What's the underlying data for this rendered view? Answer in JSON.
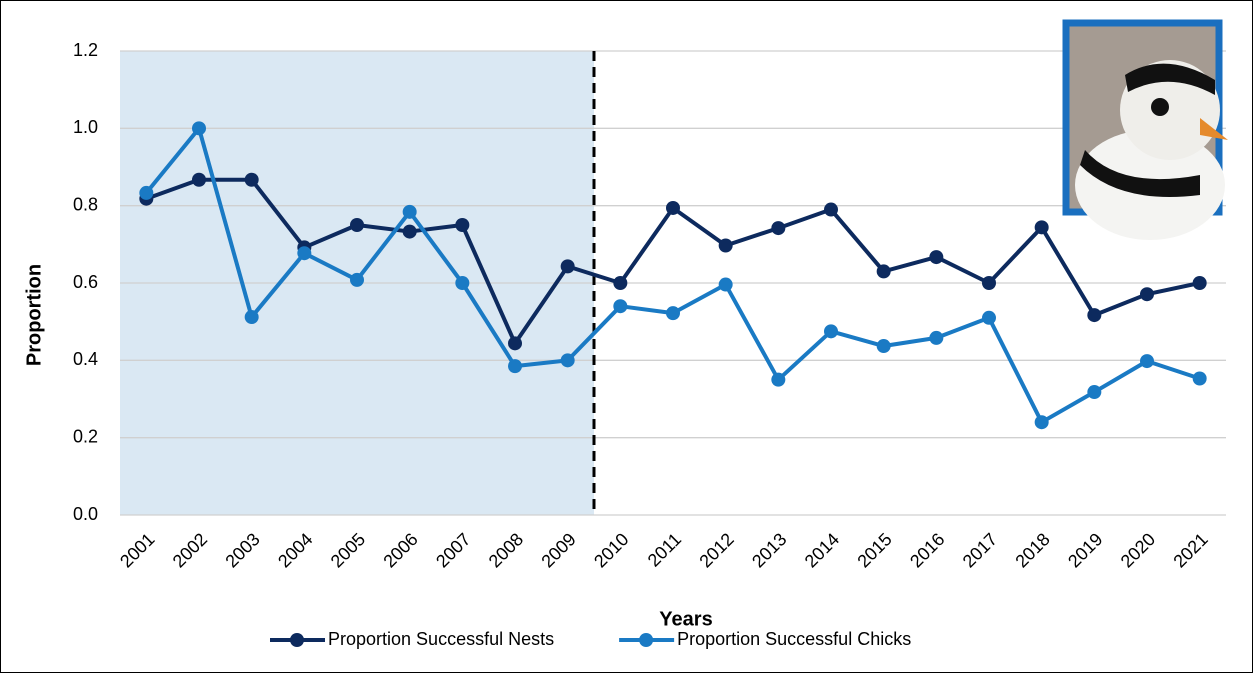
{
  "chart_data": {
    "type": "line",
    "x_label": "Years",
    "y_label": "Proportion",
    "categories": [
      "2001",
      "2002",
      "2003",
      "2004",
      "2005",
      "2006",
      "2007",
      "2008",
      "2009",
      "2010",
      "2011",
      "2012",
      "2013",
      "2014",
      "2015",
      "2016",
      "2017",
      "2018",
      "2019",
      "2020",
      "2021"
    ],
    "series": [
      {
        "name": "Proportion Successful Nests",
        "color": "#0d2a5e",
        "values": [
          0.818,
          0.867,
          0.867,
          0.692,
          0.75,
          0.733,
          0.75,
          0.444,
          0.643,
          0.6,
          0.794,
          0.697,
          0.742,
          0.79,
          0.63,
          0.667,
          0.6,
          0.744,
          0.517,
          0.571,
          0.6
        ]
      },
      {
        "name": "Proportion Successful Chicks",
        "color": "#1a7ac4",
        "values": [
          0.833,
          1.0,
          0.512,
          0.677,
          0.608,
          0.784,
          0.6,
          0.385,
          0.4,
          0.54,
          0.522,
          0.596,
          0.35,
          0.475,
          0.437,
          0.458,
          0.51,
          0.24,
          0.318,
          0.398,
          0.353
        ]
      }
    ],
    "ylim": [
      0,
      1.2
    ],
    "yticks": [
      {
        "value": 0,
        "label": "0.0"
      },
      0.2,
      0.4,
      0.6,
      0.8,
      {
        "value": 1,
        "label": "1.0"
      },
      1.2
    ],
    "grid": true,
    "shaded": {
      "from": "2001",
      "to": "2009",
      "color": "#dae8f3"
    },
    "legend": "bottom"
  }
}
